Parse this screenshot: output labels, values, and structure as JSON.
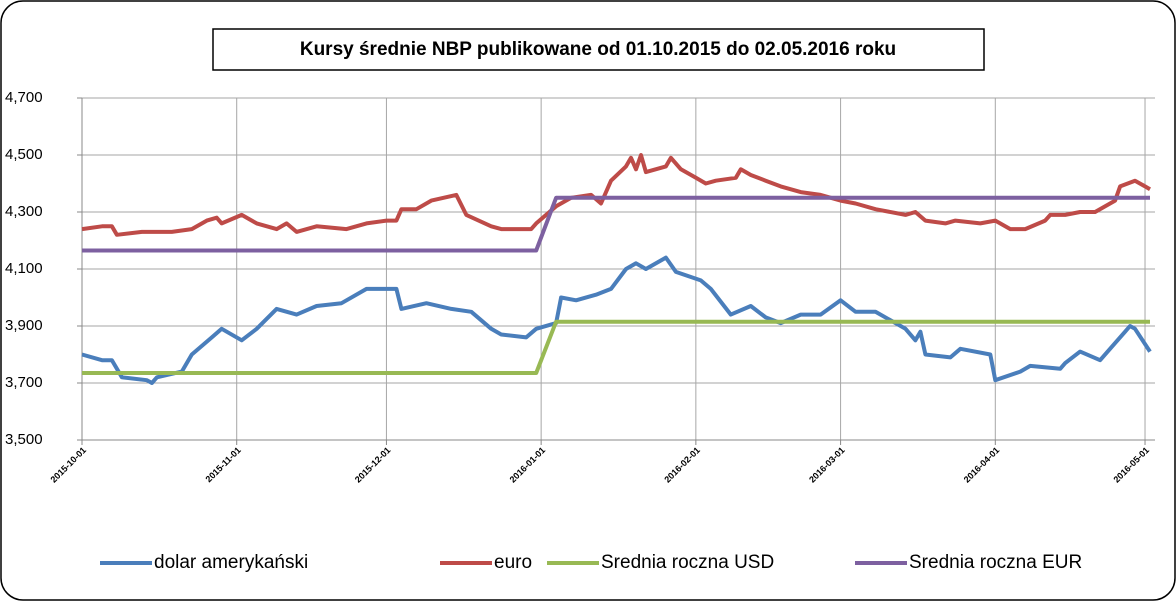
{
  "chart_data": {
    "type": "line",
    "title": "Kursy średnie NBP publikowane od 01.10.2015 do 02.05.2016 roku",
    "xlim": [
      "2015-10-01",
      "2016-05-03"
    ],
    "xticks": [
      "2015-10-01",
      "2015-11-01",
      "2015-12-01",
      "2016-01-01",
      "2016-02-01",
      "2016-03-01",
      "2016-04-01",
      "2016-05-01"
    ],
    "ylim": [
      3.5,
      4.7
    ],
    "yticks": [
      {
        "value": 3.5,
        "label": "3,500"
      },
      {
        "value": 3.7,
        "label": "3,700"
      },
      {
        "value": 3.9,
        "label": "3,900"
      },
      {
        "value": 4.1,
        "label": "4,100"
      },
      {
        "value": 4.3,
        "label": "4,300"
      },
      {
        "value": 4.5,
        "label": "4,500"
      },
      {
        "value": 4.7,
        "label": "4,700"
      }
    ],
    "grid": true,
    "legend": "bottom",
    "series": [
      {
        "name": "dolar amerykański",
        "color": "#4a7ebb",
        "x": [
          "2015-10-01",
          "2015-10-05",
          "2015-10-07",
          "2015-10-08",
          "2015-10-09",
          "2015-10-14",
          "2015-10-15",
          "2015-10-16",
          "2015-10-21",
          "2015-10-23",
          "2015-10-27",
          "2015-10-29",
          "2015-11-02",
          "2015-11-05",
          "2015-11-09",
          "2015-11-13",
          "2015-11-17",
          "2015-11-22",
          "2015-11-27",
          "2015-12-02",
          "2015-12-03",
          "2015-12-04",
          "2015-12-09",
          "2015-12-14",
          "2015-12-18",
          "2015-12-22",
          "2015-12-24",
          "2015-12-29",
          "2015-12-31",
          "2016-01-04",
          "2016-01-05",
          "2016-01-08",
          "2016-01-12",
          "2016-01-15",
          "2016-01-18",
          "2016-01-20",
          "2016-01-22",
          "2016-01-26",
          "2016-01-28",
          "2016-02-02",
          "2016-02-04",
          "2016-02-08",
          "2016-02-12",
          "2016-02-15",
          "2016-02-18",
          "2016-02-22",
          "2016-02-26",
          "2016-03-01",
          "2016-03-04",
          "2016-03-08",
          "2016-03-11",
          "2016-03-14",
          "2016-03-16",
          "2016-03-17",
          "2016-03-18",
          "2016-03-23",
          "2016-03-25",
          "2016-03-31",
          "2016-04-01",
          "2016-04-06",
          "2016-04-08",
          "2016-04-14",
          "2016-04-15",
          "2016-04-18",
          "2016-04-22",
          "2016-04-25",
          "2016-04-27",
          "2016-04-28",
          "2016-04-29",
          "2016-05-02"
        ],
        "values": [
          3.8,
          3.78,
          3.78,
          3.75,
          3.72,
          3.71,
          3.7,
          3.72,
          3.74,
          3.8,
          3.86,
          3.89,
          3.85,
          3.89,
          3.96,
          3.94,
          3.97,
          3.98,
          4.03,
          4.03,
          4.03,
          3.96,
          3.98,
          3.96,
          3.95,
          3.89,
          3.87,
          3.86,
          3.89,
          3.91,
          4.0,
          3.99,
          4.01,
          4.03,
          4.1,
          4.12,
          4.1,
          4.14,
          4.09,
          4.06,
          4.03,
          3.94,
          3.97,
          3.93,
          3.91,
          3.94,
          3.94,
          3.99,
          3.95,
          3.95,
          3.92,
          3.89,
          3.85,
          3.88,
          3.8,
          3.79,
          3.82,
          3.8,
          3.71,
          3.74,
          3.76,
          3.75,
          3.77,
          3.81,
          3.78,
          3.84,
          3.88,
          3.9,
          3.89,
          3.81
        ]
      },
      {
        "name": "euro",
        "color": "#be4b48",
        "x": [
          "2015-10-01",
          "2015-10-05",
          "2015-10-07",
          "2015-10-08",
          "2015-10-13",
          "2015-10-19",
          "2015-10-23",
          "2015-10-26",
          "2015-10-28",
          "2015-10-29",
          "2015-11-02",
          "2015-11-05",
          "2015-11-09",
          "2015-11-11",
          "2015-11-13",
          "2015-11-17",
          "2015-11-23",
          "2015-11-27",
          "2015-12-01",
          "2015-12-03",
          "2015-12-04",
          "2015-12-07",
          "2015-12-10",
          "2015-12-15",
          "2015-12-17",
          "2015-12-22",
          "2015-12-24",
          "2015-12-30",
          "2015-12-31",
          "2016-01-04",
          "2016-01-07",
          "2016-01-11",
          "2016-01-13",
          "2016-01-15",
          "2016-01-18",
          "2016-01-19",
          "2016-01-20",
          "2016-01-21",
          "2016-01-22",
          "2016-01-26",
          "2016-01-27",
          "2016-01-29",
          "2016-02-01",
          "2016-02-03",
          "2016-02-05",
          "2016-02-09",
          "2016-02-10",
          "2016-02-12",
          "2016-02-15",
          "2016-02-18",
          "2016-02-22",
          "2016-02-26",
          "2016-03-01",
          "2016-03-04",
          "2016-03-08",
          "2016-03-14",
          "2016-03-16",
          "2016-03-18",
          "2016-03-22",
          "2016-03-24",
          "2016-03-29",
          "2016-04-01",
          "2016-04-04",
          "2016-04-07",
          "2016-04-11",
          "2016-04-12",
          "2016-04-15",
          "2016-04-18",
          "2016-04-21",
          "2016-04-25",
          "2016-04-26",
          "2016-04-29",
          "2016-05-02"
        ],
        "values": [
          4.24,
          4.25,
          4.25,
          4.22,
          4.23,
          4.23,
          4.24,
          4.27,
          4.28,
          4.26,
          4.29,
          4.26,
          4.24,
          4.26,
          4.23,
          4.25,
          4.24,
          4.26,
          4.27,
          4.27,
          4.31,
          4.31,
          4.34,
          4.36,
          4.29,
          4.25,
          4.24,
          4.24,
          4.26,
          4.32,
          4.35,
          4.36,
          4.33,
          4.41,
          4.46,
          4.49,
          4.45,
          4.5,
          4.44,
          4.46,
          4.49,
          4.45,
          4.42,
          4.4,
          4.41,
          4.42,
          4.45,
          4.43,
          4.41,
          4.39,
          4.37,
          4.36,
          4.34,
          4.33,
          4.31,
          4.29,
          4.3,
          4.27,
          4.26,
          4.27,
          4.26,
          4.27,
          4.24,
          4.24,
          4.27,
          4.29,
          4.29,
          4.3,
          4.3,
          4.34,
          4.39,
          4.41,
          4.38
        ]
      },
      {
        "name": "Srednia roczna USD",
        "color": "#98b954",
        "x": [
          "2015-10-01",
          "2015-12-31",
          "2016-01-04",
          "2016-05-02"
        ],
        "values": [
          3.735,
          3.735,
          3.915,
          3.915
        ]
      },
      {
        "name": "Srednia roczna EUR",
        "color": "#7d60a0",
        "x": [
          "2015-10-01",
          "2015-12-31",
          "2016-01-04",
          "2016-05-02"
        ],
        "values": [
          4.165,
          4.165,
          4.35,
          4.35
        ]
      }
    ]
  }
}
